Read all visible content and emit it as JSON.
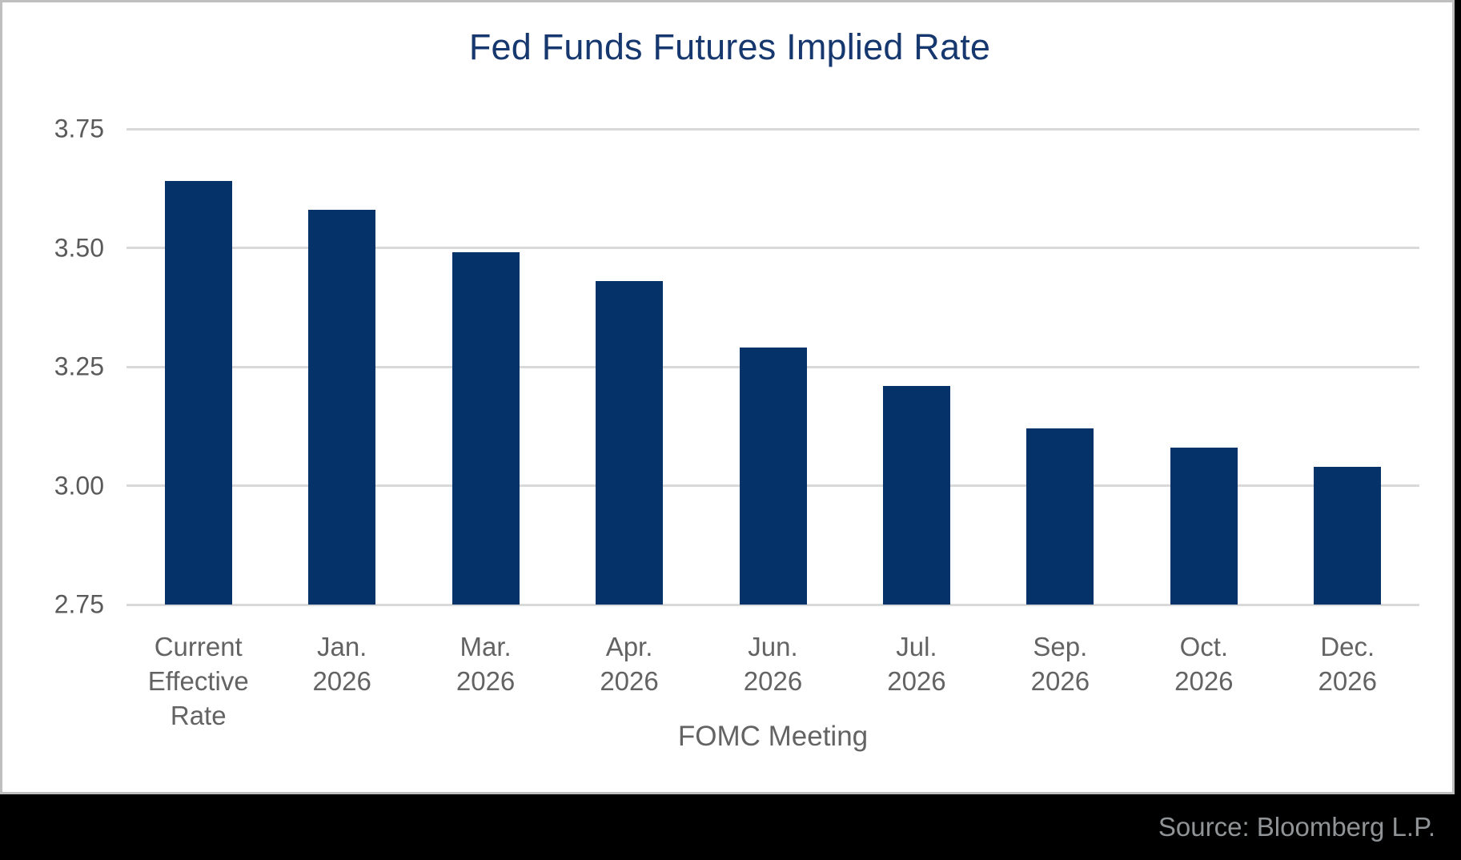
{
  "page": {
    "background_color": "#000000",
    "card_background": "#ffffff",
    "card_border_color": "#bfbfbf",
    "footer_background": "#000000"
  },
  "chart": {
    "title": "Fed Funds Futures Implied Rate",
    "xlabel": "FOMC Meeting",
    "source": "Source: Bloomberg L.P.",
    "title_color": "#16386f",
    "bar_color": "#043269",
    "grid_color": "#d9d9d9",
    "tick_color": "#5a5a5a"
  },
  "chart_data": {
    "type": "bar",
    "title": "Fed Funds Futures Implied Rate",
    "xlabel": "FOMC Meeting",
    "ylabel": "",
    "categories": [
      [
        "Current",
        "Effective",
        "Rate"
      ],
      [
        "Jan.",
        "2026"
      ],
      [
        "Mar.",
        "2026"
      ],
      [
        "Apr.",
        "2026"
      ],
      [
        "Jun.",
        "2026"
      ],
      [
        "Jul.",
        "2026"
      ],
      [
        "Sep.",
        "2026"
      ],
      [
        "Oct.",
        "2026"
      ],
      [
        "Dec.",
        "2026"
      ]
    ],
    "values": [
      3.64,
      3.58,
      3.49,
      3.43,
      3.29,
      3.21,
      3.12,
      3.08,
      3.04
    ],
    "ylim": [
      2.75,
      3.75
    ],
    "yticks": [
      3.75,
      3.5,
      3.25,
      3.0,
      2.75
    ],
    "ytick_labels": [
      "3.75",
      "3.50",
      "3.25",
      "3.00",
      "2.75"
    ],
    "grid": "horizontal-only",
    "legend": "none",
    "bar_color": "#043269",
    "source": "Source: Bloomberg L.P."
  }
}
